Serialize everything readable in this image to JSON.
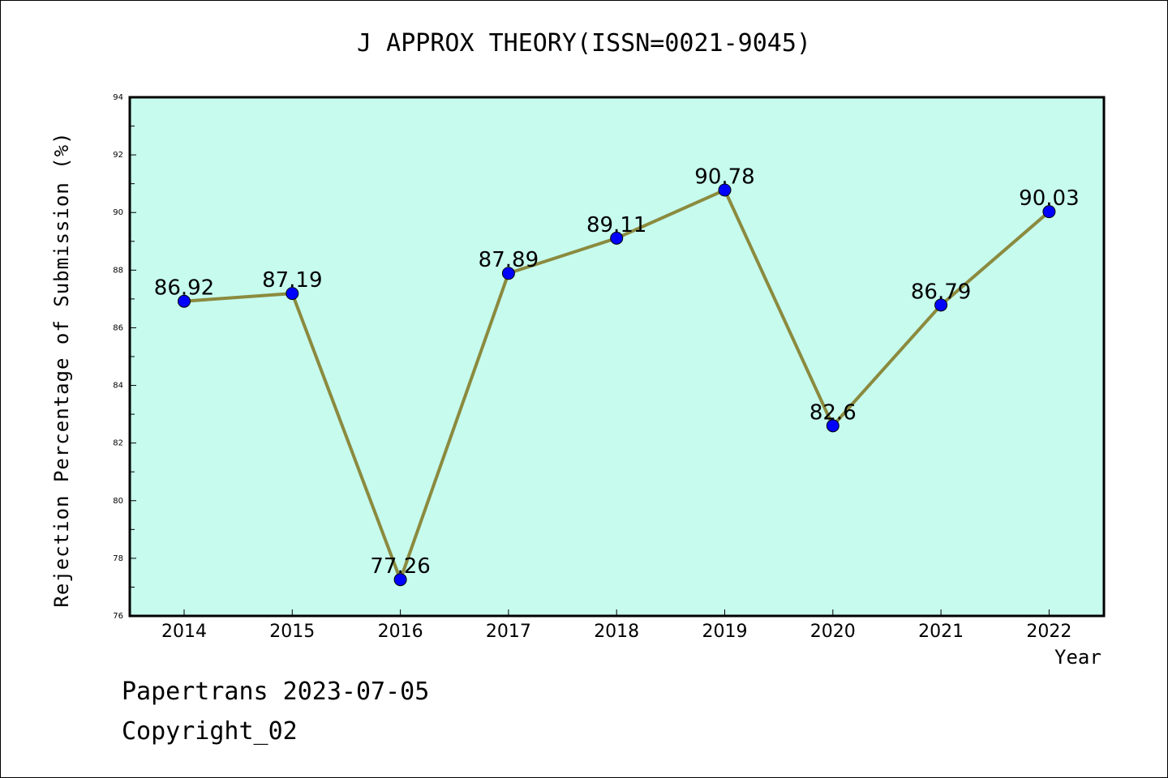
{
  "chart_data": {
    "type": "line",
    "title": "J APPROX THEORY(ISSN=0021-9045)",
    "xlabel": "Year",
    "ylabel": "Rejection Percentage of Submission (%)",
    "categories": [
      "2014",
      "2015",
      "2016",
      "2017",
      "2018",
      "2019",
      "2020",
      "2021",
      "2022"
    ],
    "series": [
      {
        "values": [
          86.92,
          87.19,
          77.26,
          87.89,
          89.11,
          90.78,
          82.6,
          86.79,
          90.03
        ]
      }
    ],
    "data_labels": [
      "86.92",
      "87.19",
      "77.26",
      "87.89",
      "89.11",
      "90.78",
      "82.6",
      "86.79",
      "90.03"
    ],
    "ylim": [
      76,
      94
    ],
    "yticks": [
      "76",
      "78",
      "80",
      "82",
      "84",
      "86",
      "88",
      "90",
      "92",
      "94"
    ],
    "grid": false,
    "colors": {
      "plot_bg": "#c6fbee",
      "line": "#8b8a3e",
      "marker": "#0000ff"
    }
  },
  "footer": {
    "line1": "Papertrans 2023-07-05",
    "line2": "Copyright_02"
  }
}
